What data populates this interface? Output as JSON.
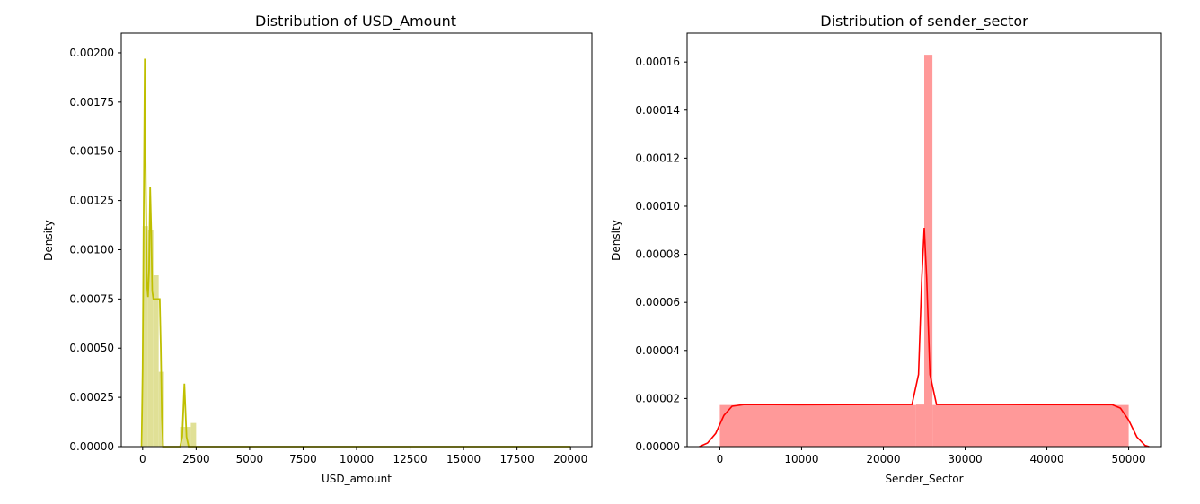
{
  "chart_data": [
    {
      "type": "histogram",
      "title": "Distribution of USD_Amount",
      "xlabel": "USD_amount",
      "ylabel": "Density",
      "xlim": [
        -1000,
        21000
      ],
      "ylim": [
        0,
        0.0021
      ],
      "xticks": [
        0,
        2500,
        5000,
        7500,
        10000,
        12500,
        15000,
        17500,
        20000
      ],
      "xtick_labels": [
        "0",
        "2500",
        "5000",
        "7500",
        "10000",
        "12500",
        "15000",
        "17500",
        "20000"
      ],
      "yticks": [
        0,
        0.00025,
        0.0005,
        0.00075,
        0.001,
        0.00125,
        0.0015,
        0.00175,
        0.002
      ],
      "ytick_labels": [
        "0.00000",
        "0.00025",
        "0.00050",
        "0.00075",
        "0.00100",
        "0.00125",
        "0.00150",
        "0.00175",
        "0.00200"
      ],
      "grid": false,
      "color": "#bfbf00",
      "bar_color": "#e0e096",
      "bins": [
        {
          "x0": 0,
          "x1": 250,
          "density": 0.00112
        },
        {
          "x0": 250,
          "x1": 500,
          "density": 0.0011
        },
        {
          "x0": 500,
          "x1": 750,
          "density": 0.00087
        },
        {
          "x0": 750,
          "x1": 1000,
          "density": 0.00038
        },
        {
          "x0": 1000,
          "x1": 1750,
          "density": 0.0
        },
        {
          "x0": 1750,
          "x1": 2250,
          "density": 0.0001
        },
        {
          "x0": 2250,
          "x1": 2500,
          "density": 0.00012
        },
        {
          "x0": 2500,
          "x1": 20000,
          "density": 3e-06
        }
      ],
      "kde": [
        [
          -50,
          0.0
        ],
        [
          0,
          0.0004
        ],
        [
          50,
          0.0012
        ],
        [
          100,
          0.00197
        ],
        [
          150,
          0.0013
        ],
        [
          200,
          0.00082
        ],
        [
          250,
          0.00076
        ],
        [
          300,
          0.0009
        ],
        [
          350,
          0.00132
        ],
        [
          400,
          0.0011
        ],
        [
          450,
          0.00079
        ],
        [
          500,
          0.00075
        ],
        [
          650,
          0.00075
        ],
        [
          800,
          0.00075
        ],
        [
          850,
          0.0005
        ],
        [
          900,
          0.00015
        ],
        [
          950,
          0.0
        ],
        [
          1750,
          0.0
        ],
        [
          1850,
          5e-05
        ],
        [
          1950,
          0.00032
        ],
        [
          2050,
          5e-05
        ],
        [
          2150,
          0.0
        ],
        [
          20000,
          0.0
        ]
      ]
    },
    {
      "type": "histogram",
      "title": "Distribution of sender_sector",
      "xlabel": "Sender_Sector",
      "ylabel": "Density",
      "xlim": [
        -4000,
        54000
      ],
      "ylim": [
        0,
        0.000172
      ],
      "xticks": [
        0,
        10000,
        20000,
        30000,
        40000,
        50000
      ],
      "xtick_labels": [
        "0",
        "10000",
        "20000",
        "30000",
        "40000",
        "50000"
      ],
      "yticks": [
        0,
        2e-05,
        4e-05,
        6e-05,
        8e-05,
        0.0001,
        0.00012,
        0.00014,
        0.00016
      ],
      "ytick_labels": [
        "0.00000",
        "0.00002",
        "0.00004",
        "0.00006",
        "0.00008",
        "0.00010",
        "0.00012",
        "0.00014",
        "0.00016"
      ],
      "grid": false,
      "color": "#ff0000",
      "bar_color": "#ff9999",
      "bins": [
        {
          "x0": 0,
          "x1": 24000,
          "density": 1.73e-05
        },
        {
          "x0": 24000,
          "x1": 25000,
          "density": 1.75e-05
        },
        {
          "x0": 25000,
          "x1": 26000,
          "density": 0.000163
        },
        {
          "x0": 26000,
          "x1": 50000,
          "density": 1.73e-05
        }
      ],
      "kde": [
        [
          -2500,
          0.0
        ],
        [
          -1500,
          1.5e-06
        ],
        [
          -500,
          5.5e-06
        ],
        [
          500,
          1.3e-05
        ],
        [
          1500,
          1.68e-05
        ],
        [
          3000,
          1.75e-05
        ],
        [
          10000,
          1.74e-05
        ],
        [
          20000,
          1.75e-05
        ],
        [
          23500,
          1.75e-05
        ],
        [
          24300,
          3e-05
        ],
        [
          24700,
          7e-05
        ],
        [
          25000,
          9.1e-05
        ],
        [
          25300,
          7e-05
        ],
        [
          25700,
          3e-05
        ],
        [
          26500,
          1.75e-05
        ],
        [
          35000,
          1.75e-05
        ],
        [
          48000,
          1.74e-05
        ],
        [
          49000,
          1.6e-05
        ],
        [
          50000,
          1.1e-05
        ],
        [
          51000,
          4e-06
        ],
        [
          52000,
          5e-07
        ],
        [
          52500,
          0.0
        ]
      ]
    }
  ]
}
